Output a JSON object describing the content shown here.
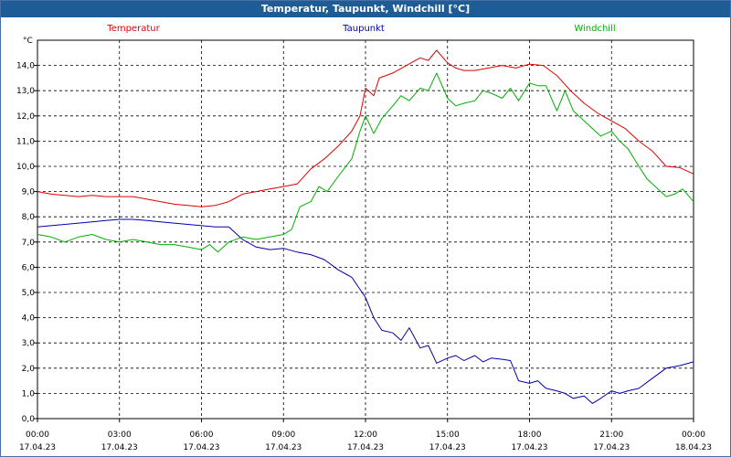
{
  "window": {
    "title": "Temperatur, Taupunkt, Windchill [°C]"
  },
  "chart_data": {
    "type": "line",
    "title": "Temperatur, Taupunkt, Windchill [°C]",
    "ylabel": "°C",
    "xlabel": "",
    "ylim": [
      0,
      15
    ],
    "xlim": [
      0,
      24
    ],
    "grid": true,
    "legend": "top",
    "x_ticks": [
      {
        "x": 0,
        "time": "00:00",
        "date": "17.04.23"
      },
      {
        "x": 3,
        "time": "03:00",
        "date": "17.04.23"
      },
      {
        "x": 6,
        "time": "06:00",
        "date": "17.04.23"
      },
      {
        "x": 9,
        "time": "09:00",
        "date": "17.04.23"
      },
      {
        "x": 12,
        "time": "12:00",
        "date": "17.04.23"
      },
      {
        "x": 15,
        "time": "15:00",
        "date": "17.04.23"
      },
      {
        "x": 18,
        "time": "18:00",
        "date": "17.04.23"
      },
      {
        "x": 21,
        "time": "21:00",
        "date": "17.04.23"
      },
      {
        "x": 24,
        "time": "00:00",
        "date": "18.04.23"
      }
    ],
    "y_ticks": [
      "0,0",
      "1,0",
      "2,0",
      "3,0",
      "4,0",
      "5,0",
      "6,0",
      "7,0",
      "8,0",
      "9,0",
      "10,0",
      "11,0",
      "12,0",
      "13,0",
      "14,0"
    ],
    "series": [
      {
        "name": "Temperatur",
        "color": "#e00000",
        "x": [
          0,
          0.5,
          1,
          1.5,
          2,
          2.5,
          3,
          3.5,
          4,
          4.5,
          5,
          5.5,
          6,
          6.5,
          7,
          7.5,
          8,
          8.5,
          9,
          9.5,
          10,
          10.5,
          11,
          11.5,
          11.8,
          12,
          12.3,
          12.5,
          13,
          13.5,
          14,
          14.3,
          14.6,
          15,
          15.3,
          15.6,
          16,
          16.5,
          17,
          17.5,
          18,
          18.5,
          19,
          19.5,
          20,
          20.5,
          21,
          21.5,
          22,
          22.5,
          23,
          23.5,
          24
        ],
        "y": [
          9.0,
          8.9,
          8.85,
          8.8,
          8.85,
          8.8,
          8.8,
          8.8,
          8.7,
          8.6,
          8.5,
          8.45,
          8.4,
          8.45,
          8.6,
          8.9,
          9.0,
          9.1,
          9.2,
          9.3,
          9.9,
          10.3,
          10.8,
          11.4,
          12.0,
          13.1,
          12.8,
          13.5,
          13.7,
          14.0,
          14.3,
          14.2,
          14.6,
          14.1,
          13.9,
          13.8,
          13.8,
          13.9,
          14.0,
          13.9,
          14.05,
          14.0,
          13.6,
          13.0,
          12.5,
          12.1,
          11.8,
          11.5,
          11.0,
          10.6,
          10.0,
          9.95,
          9.7
        ]
      },
      {
        "name": "Taupunkt",
        "color": "#0000b0",
        "x": [
          0,
          0.5,
          1,
          1.5,
          2,
          2.5,
          3,
          3.5,
          4,
          4.5,
          5,
          5.5,
          6,
          6.5,
          7,
          7.5,
          8,
          8.5,
          9,
          9.5,
          10,
          10.5,
          11,
          11.5,
          12,
          12.3,
          12.6,
          13,
          13.3,
          13.6,
          14,
          14.3,
          14.6,
          15,
          15.3,
          15.6,
          16,
          16.3,
          16.6,
          17,
          17.3,
          17.6,
          18,
          18.3,
          18.6,
          19,
          19.3,
          19.6,
          20,
          20.3,
          20.6,
          21,
          21.3,
          21.6,
          22,
          22.5,
          23,
          23.5,
          24
        ],
        "y": [
          7.6,
          7.65,
          7.7,
          7.75,
          7.8,
          7.85,
          7.9,
          7.9,
          7.85,
          7.8,
          7.75,
          7.7,
          7.65,
          7.6,
          7.6,
          7.1,
          6.8,
          6.7,
          6.75,
          6.6,
          6.5,
          6.3,
          5.9,
          5.6,
          4.8,
          4.0,
          3.5,
          3.4,
          3.1,
          3.6,
          2.8,
          2.9,
          2.2,
          2.4,
          2.5,
          2.3,
          2.5,
          2.25,
          2.4,
          2.35,
          2.3,
          1.5,
          1.4,
          1.5,
          1.2,
          1.1,
          1.0,
          0.8,
          0.9,
          0.6,
          0.8,
          1.1,
          1.0,
          1.1,
          1.2,
          1.6,
          2.0,
          2.1,
          2.25
        ]
      },
      {
        "name": "Windchill",
        "color": "#00b000",
        "x": [
          0,
          0.5,
          1,
          1.5,
          2,
          2.5,
          3,
          3.5,
          4,
          4.5,
          5,
          5.5,
          6,
          6.3,
          6.6,
          7,
          7.5,
          8,
          8.5,
          9,
          9.3,
          9.6,
          10,
          10.3,
          10.6,
          11,
          11.5,
          11.8,
          12,
          12.3,
          12.6,
          13,
          13.3,
          13.6,
          14,
          14.3,
          14.6,
          15,
          15.3,
          15.6,
          16,
          16.3,
          16.6,
          17,
          17.3,
          17.6,
          18,
          18.3,
          18.6,
          19,
          19.3,
          19.6,
          20,
          20.3,
          20.6,
          21,
          21.3,
          21.6,
          22,
          22.3,
          22.6,
          23,
          23.3,
          23.6,
          24
        ],
        "y": [
          7.3,
          7.2,
          7.0,
          7.2,
          7.3,
          7.1,
          7.0,
          7.1,
          7.0,
          6.9,
          6.9,
          6.8,
          6.7,
          6.9,
          6.6,
          7.0,
          7.2,
          7.1,
          7.2,
          7.3,
          7.5,
          8.4,
          8.6,
          9.2,
          9.0,
          9.6,
          10.3,
          11.4,
          12.0,
          11.3,
          11.9,
          12.4,
          12.8,
          12.6,
          13.1,
          13.0,
          13.7,
          12.7,
          12.4,
          12.5,
          12.6,
          13.0,
          12.9,
          12.7,
          13.1,
          12.6,
          13.3,
          13.2,
          13.2,
          12.2,
          13.0,
          12.2,
          11.8,
          11.5,
          11.2,
          11.4,
          11.0,
          10.7,
          10.0,
          9.5,
          9.2,
          8.8,
          8.9,
          9.1,
          8.6
        ]
      }
    ]
  }
}
